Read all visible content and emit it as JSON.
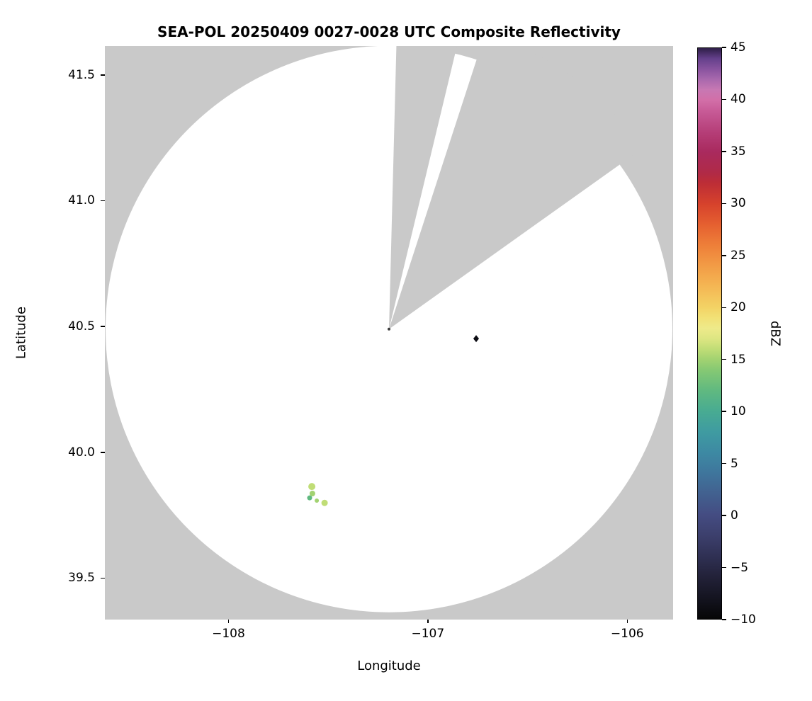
{
  "chart_data": {
    "type": "heatmap",
    "description": "Radar PPI composite reflectivity map: white circular radar coverage area with two gray blocked azimuth sectors on a gray no-data background, with a few weak sparse echoes.",
    "title": "SEA-POL 20250409 0027-0028 UTC Composite Reflectivity",
    "xlabel": "Longitude",
    "ylabel": "Latitude",
    "xlim": [
      -108.62,
      -105.77
    ],
    "ylim": [
      39.335,
      41.615
    ],
    "grid": false,
    "x_ticks": [
      {
        "value": -108,
        "label": "−108"
      },
      {
        "value": -107,
        "label": "−107"
      },
      {
        "value": -106,
        "label": "−106"
      }
    ],
    "y_ticks": [
      {
        "value": 39.5,
        "label": "39.5"
      },
      {
        "value": 40.0,
        "label": "40.0"
      },
      {
        "value": 40.5,
        "label": "40.5"
      },
      {
        "value": 41.0,
        "label": "41.0"
      },
      {
        "value": 41.5,
        "label": "41.5"
      }
    ],
    "colors": {
      "no_data": "#c9c9c9",
      "coverage": "#ffffff",
      "text": "#000000"
    },
    "radar": {
      "center": {
        "lon": -107.195,
        "lat": 40.49
      },
      "coverage_radius_px": 400,
      "blocked_sectors_azimuth_deg": [
        [
          1.5,
          13.5
        ],
        [
          18,
          54.5
        ]
      ],
      "center_mark_color": "#3c3c3c"
    },
    "colorbar": {
      "label": "dBZ",
      "min": -10,
      "max": 45,
      "ticks": [
        {
          "value": 45,
          "label": "45"
        },
        {
          "value": 40,
          "label": "40"
        },
        {
          "value": 35,
          "label": "35"
        },
        {
          "value": 30,
          "label": "30"
        },
        {
          "value": 25,
          "label": "25"
        },
        {
          "value": 20,
          "label": "20"
        },
        {
          "value": 15,
          "label": "15"
        },
        {
          "value": 10,
          "label": "10"
        },
        {
          "value": 5,
          "label": "5"
        },
        {
          "value": 0,
          "label": "0"
        },
        {
          "value": -5,
          "label": "−5"
        },
        {
          "value": -10,
          "label": "−10"
        }
      ],
      "stops": [
        [
          -10,
          "#060606"
        ],
        [
          -8,
          "#141420"
        ],
        [
          -6,
          "#222138"
        ],
        [
          -4,
          "#2f3053"
        ],
        [
          -2,
          "#3c3f6c"
        ],
        [
          0,
          "#444c82"
        ],
        [
          2,
          "#42608f"
        ],
        [
          4,
          "#3f759c"
        ],
        [
          6,
          "#3d89a3"
        ],
        [
          8,
          "#3f9ba1"
        ],
        [
          10,
          "#48ab92"
        ],
        [
          12,
          "#60b980"
        ],
        [
          14,
          "#86c973"
        ],
        [
          15,
          "#a2d271"
        ],
        [
          16,
          "#c0dd76"
        ],
        [
          17,
          "#dde682"
        ],
        [
          18,
          "#eeea8a"
        ],
        [
          19,
          "#f2e176"
        ],
        [
          20,
          "#f3d365"
        ],
        [
          22,
          "#f4b754"
        ],
        [
          24,
          "#f29c46"
        ],
        [
          26,
          "#ee7f39"
        ],
        [
          28,
          "#e56030"
        ],
        [
          30,
          "#d6422c"
        ],
        [
          32,
          "#bd2d36"
        ],
        [
          33,
          "#b02a47"
        ],
        [
          35,
          "#a92a5e"
        ],
        [
          37,
          "#b63f79"
        ],
        [
          39,
          "#c85c98"
        ],
        [
          40,
          "#d26fa8"
        ],
        [
          41,
          "#c778b3"
        ],
        [
          42,
          "#a868ad"
        ],
        [
          43,
          "#88539f"
        ],
        [
          44,
          "#64408b"
        ],
        [
          45,
          "#2e1e47"
        ]
      ]
    },
    "echoes": [
      {
        "lon": -107.582,
        "lat": 39.864,
        "dbz": 16,
        "radius_px": 5,
        "shape": "circle"
      },
      {
        "lon": -107.579,
        "lat": 39.836,
        "dbz": 15,
        "radius_px": 4,
        "shape": "circle"
      },
      {
        "lon": -107.593,
        "lat": 39.819,
        "dbz": 12,
        "radius_px": 3.5,
        "shape": "circle"
      },
      {
        "lon": -107.557,
        "lat": 39.808,
        "dbz": 15,
        "radius_px": 3,
        "shape": "circle"
      },
      {
        "lon": -107.518,
        "lat": 39.799,
        "dbz": 16,
        "radius_px": 4.5,
        "shape": "circle"
      },
      {
        "lon": -106.758,
        "lat": 40.452,
        "dbz": -9,
        "radius_px": 4,
        "shape": "diamond"
      }
    ]
  }
}
